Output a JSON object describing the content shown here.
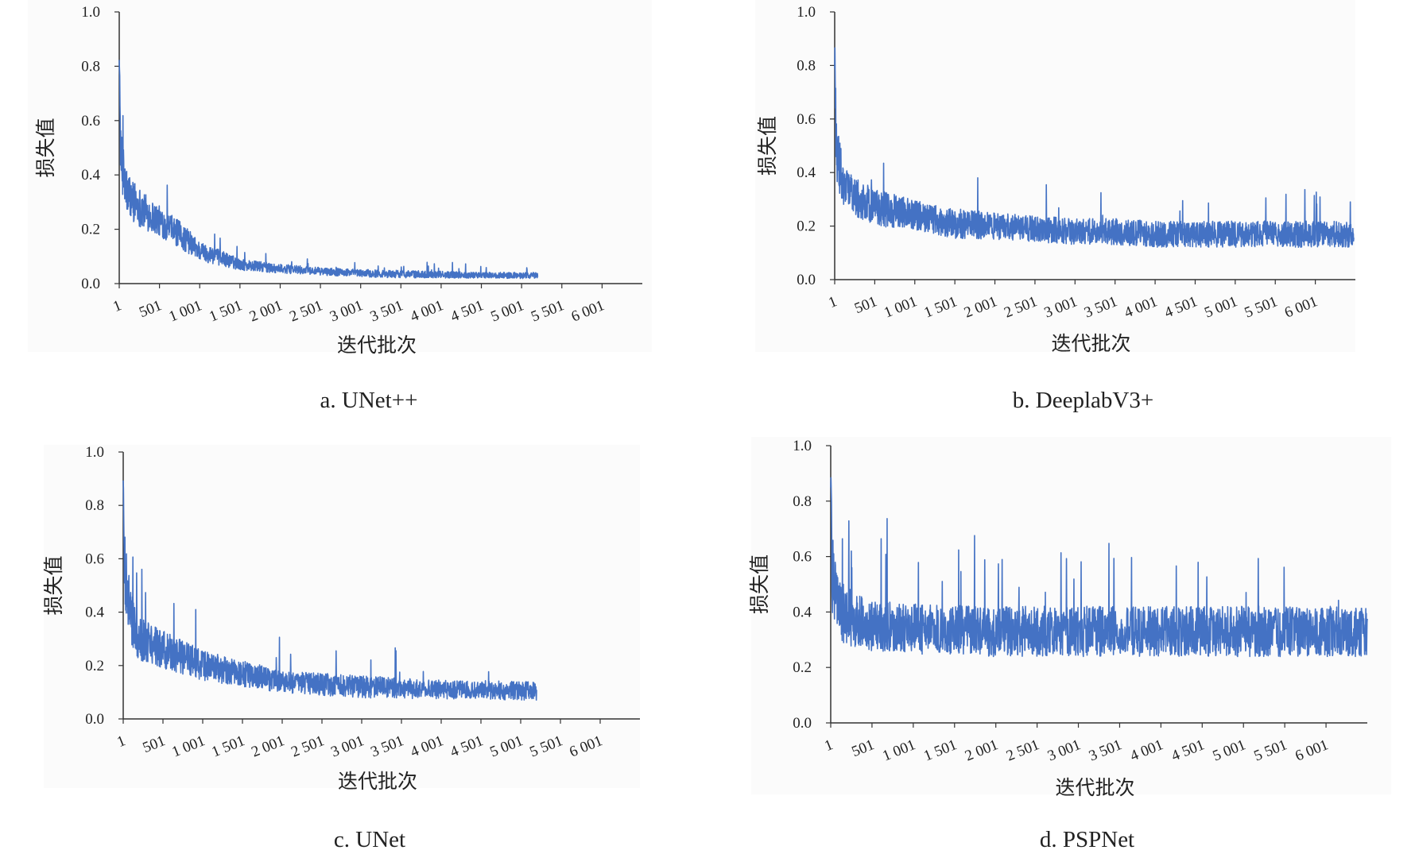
{
  "chart_data": [
    {
      "type": "line",
      "caption": "a. UNet++",
      "xlabel": "迭代批次",
      "ylabel": "损失值",
      "ylim": [
        0,
        1.0
      ],
      "yticks": [
        "0.0",
        "0.2",
        "0.4",
        "0.6",
        "0.8",
        "1.0"
      ],
      "xticks": [
        "1",
        "501",
        "1 001",
        "1 501",
        "2 001",
        "2 501",
        "3 001",
        "3 501",
        "4 001",
        "4 501",
        "5 001",
        "5 501",
        "6 001"
      ],
      "x_range": [
        1,
        6500
      ],
      "grid": false,
      "color": "#4472C4",
      "series": [
        {
          "x": [
            1,
            20,
            100,
            300,
            500,
            800,
            1001,
            1300,
            1501,
            2001,
            2501,
            3001,
            3501,
            4001,
            4501,
            5001,
            5200
          ],
          "y": [
            0.85,
            0.45,
            0.33,
            0.27,
            0.23,
            0.17,
            0.12,
            0.09,
            0.07,
            0.055,
            0.045,
            0.038,
            0.035,
            0.033,
            0.031,
            0.03,
            0.03
          ],
          "noise": [
            0.02,
            0.08,
            0.06,
            0.05,
            0.04,
            0.035,
            0.025,
            0.02,
            0.015,
            0.012,
            0.01,
            0.01,
            0.01,
            0.009,
            0.008,
            0.008,
            0.008
          ]
        }
      ]
    },
    {
      "type": "line",
      "caption": "b. DeeplabV3+",
      "xlabel": "迭代批次",
      "ylabel": "损失值",
      "ylim": [
        0,
        1.0
      ],
      "yticks": [
        "0.0",
        "0.2",
        "0.4",
        "0.6",
        "0.8",
        "1.0"
      ],
      "xticks": [
        "1",
        "501",
        "1 001",
        "1 501",
        "2 001",
        "2 501",
        "3 001",
        "3 501",
        "4 001",
        "4 501",
        "5 001",
        "5 501",
        "6 001"
      ],
      "x_range": [
        1,
        6500
      ],
      "grid": false,
      "color": "#4472C4",
      "series": [
        {
          "x": [
            1,
            20,
            100,
            300,
            500,
            1001,
            1501,
            2001,
            2501,
            3001,
            3501,
            4001,
            4501,
            5001,
            5501,
            6001,
            6500
          ],
          "y": [
            0.85,
            0.5,
            0.36,
            0.3,
            0.27,
            0.24,
            0.21,
            0.2,
            0.19,
            0.18,
            0.18,
            0.17,
            0.17,
            0.17,
            0.17,
            0.17,
            0.17
          ],
          "noise": [
            0.05,
            0.09,
            0.06,
            0.05,
            0.05,
            0.04,
            0.04,
            0.035,
            0.035,
            0.035,
            0.035,
            0.035,
            0.035,
            0.035,
            0.035,
            0.035,
            0.035
          ]
        }
      ]
    },
    {
      "type": "line",
      "caption": "c. UNet",
      "xlabel": "迭代批次",
      "ylabel": "损失值",
      "ylim": [
        0,
        1.0
      ],
      "yticks": [
        "0.0",
        "0.2",
        "0.4",
        "0.6",
        "0.8",
        "1.0"
      ],
      "xticks": [
        "1",
        "501",
        "1 001",
        "1 501",
        "2 001",
        "2 501",
        "3 001",
        "3 501",
        "4 001",
        "4 501",
        "5 001",
        "5 501",
        "6 001"
      ],
      "x_range": [
        1,
        6500
      ],
      "grid": false,
      "color": "#4472C4",
      "series": [
        {
          "x": [
            1,
            20,
            100,
            200,
            500,
            1001,
            1501,
            2001,
            2501,
            3001,
            3501,
            4001,
            4501,
            5001,
            5200
          ],
          "y": [
            0.95,
            0.55,
            0.38,
            0.3,
            0.26,
            0.2,
            0.17,
            0.14,
            0.13,
            0.12,
            0.115,
            0.11,
            0.11,
            0.105,
            0.105
          ],
          "noise": [
            0.05,
            0.1,
            0.07,
            0.06,
            0.05,
            0.04,
            0.035,
            0.03,
            0.03,
            0.03,
            0.028,
            0.025,
            0.025,
            0.025,
            0.025
          ]
        }
      ]
    },
    {
      "type": "line",
      "caption": "d. PSPNet",
      "xlabel": "迭代批次",
      "ylabel": "损失值",
      "ylim": [
        0,
        1.0
      ],
      "yticks": [
        "0.0",
        "0.2",
        "0.4",
        "0.6",
        "0.8",
        "1.0"
      ],
      "xticks": [
        "1",
        "501",
        "1 001",
        "1 501",
        "2 001",
        "2 501",
        "3 001",
        "3 501",
        "4 001",
        "4 501",
        "5 001",
        "5 501",
        "6 001"
      ],
      "x_range": [
        1,
        6500
      ],
      "grid": false,
      "color": "#4472C4",
      "series": [
        {
          "x": [
            1,
            20,
            100,
            300,
            500,
            1001,
            2001,
            3001,
            4001,
            5001,
            6001,
            6500
          ],
          "y": [
            0.9,
            0.5,
            0.4,
            0.37,
            0.35,
            0.34,
            0.33,
            0.33,
            0.33,
            0.33,
            0.33,
            0.33
          ],
          "noise": [
            0.05,
            0.1,
            0.08,
            0.07,
            0.065,
            0.065,
            0.065,
            0.065,
            0.065,
            0.065,
            0.065,
            0.065
          ]
        }
      ]
    }
  ]
}
